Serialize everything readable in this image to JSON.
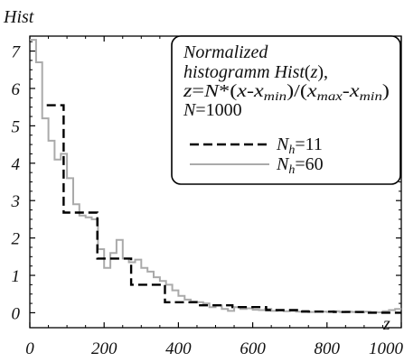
{
  "chart_data": {
    "type": "line",
    "ylabel": "Hist",
    "xlabel": "z",
    "xlim": [
      0,
      1000
    ],
    "ylim": [
      -0.4,
      7.4
    ],
    "x_ticks": [
      0,
      200,
      400,
      600,
      800,
      1000
    ],
    "y_ticks": [
      0,
      1,
      2,
      3,
      4,
      5,
      6,
      7
    ],
    "x_tick_labels": [
      "0",
      "200",
      "400",
      "600",
      "800",
      "1000"
    ],
    "y_tick_labels": [
      "0",
      "1",
      "2",
      "3",
      "4",
      "5",
      "6",
      "7"
    ],
    "grid": false,
    "legend": {
      "placement": "top-right",
      "lines": [
        "Normalized",
        "histogramm Hist(z),",
        "z=N*(x-xmin)/(xmax-xmin)",
        "N=1000"
      ],
      "line_parts": [
        [
          {
            "t": "Normalized"
          }
        ],
        [
          {
            "t": "histogramm "
          },
          {
            "t": "Hist"
          },
          {
            "t": "(",
            "n": true
          },
          {
            "t": "z"
          },
          {
            "t": "),",
            "n": true
          }
        ],
        [
          {
            "t": "z"
          },
          {
            "t": "=",
            "n": true
          },
          {
            "t": "N"
          },
          {
            "t": "*(",
            "n": true
          },
          {
            "t": "x"
          },
          {
            "t": "-",
            "n": true
          },
          {
            "t": "x"
          },
          {
            "t": "min",
            "sub": true
          },
          {
            "t": ")/(",
            "n": true
          },
          {
            "t": "x"
          },
          {
            "t": "max",
            "sub": true
          },
          {
            "t": "-",
            "n": true
          },
          {
            "t": "x"
          },
          {
            "t": "min",
            "sub": true
          },
          {
            "t": ")",
            "n": true
          }
        ],
        [
          {
            "t": "N"
          },
          {
            "t": "=1000",
            "n": true
          }
        ]
      ]
    },
    "series": [
      {
        "name": "Nh=11",
        "name_parts": [
          {
            "t": "N"
          },
          {
            "t": "h",
            "sub": true
          },
          {
            "t": "=11",
            "n": true
          }
        ],
        "style": "dashed",
        "color": "#000000",
        "edges": [
          0,
          45.45,
          90.91,
          181.82,
          272.73,
          363.64,
          454.55,
          545.45,
          636.36,
          727.27,
          818.18,
          909.09,
          1000
        ],
        "values": [
          null,
          5.55,
          2.68,
          1.45,
          0.75,
          0.28,
          0.2,
          0.15,
          0.07,
          0.03,
          0.02,
          0.0
        ]
      },
      {
        "name": "Nh=60",
        "name_parts": [
          {
            "t": "N"
          },
          {
            "t": "h",
            "sub": true
          },
          {
            "t": "=60",
            "n": true
          }
        ],
        "style": "solid",
        "color": "#aaaaaa",
        "bin_width": 16.67,
        "values": [
          7.3,
          6.7,
          5.2,
          4.6,
          4.1,
          4.25,
          3.6,
          2.9,
          2.6,
          2.55,
          2.5,
          1.7,
          1.2,
          1.6,
          1.95,
          1.45,
          1.35,
          1.42,
          1.2,
          1.1,
          0.95,
          0.85,
          0.75,
          0.6,
          0.45,
          0.35,
          0.3,
          0.28,
          0.25,
          0.15,
          0.2,
          0.1,
          0.05,
          0.15,
          0.1,
          0.12,
          0.08,
          0.07,
          0.1,
          0.05,
          0.06,
          0.04,
          0.05,
          0.03,
          0.06,
          0.02,
          0.04,
          0.03,
          0.02,
          0.04,
          0.02,
          0.03,
          0.02,
          0.01,
          0.03,
          0.02,
          0.01,
          0.04,
          0.07,
          0.1
        ]
      }
    ]
  }
}
